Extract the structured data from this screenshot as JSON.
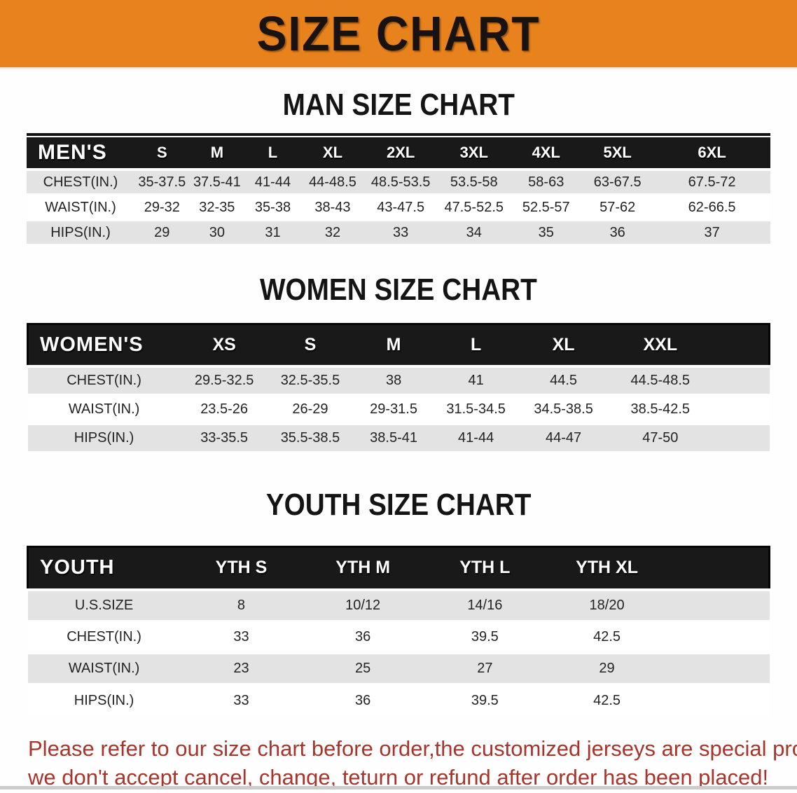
{
  "banner": {
    "title": "SIZE CHART"
  },
  "colors": {
    "banner_bg": "#E8821C",
    "table_header_bg": "#191919",
    "row_stripe_gray": "#E3E3E3",
    "note_red": "#A8352C"
  },
  "tables": [
    {
      "id": "men",
      "heading": "MAN SIZE CHART",
      "label": "MEN'S",
      "sizes": [
        "S",
        "M",
        "L",
        "XL",
        "2XL",
        "3XL",
        "4XL",
        "5XL",
        "6XL"
      ],
      "rows": [
        {
          "label": "CHEST(IN.)",
          "values": [
            "35-37.5",
            "37.5-41",
            "41-44",
            "44-48.5",
            "48.5-53.5",
            "53.5-58",
            "58-63",
            "63-67.5",
            "67.5-72"
          ]
        },
        {
          "label": "WAIST(IN.)",
          "values": [
            "29-32",
            "32-35",
            "35-38",
            "38-43",
            "43-47.5",
            "47.5-52.5",
            "52.5-57",
            "57-62",
            "62-66.5"
          ]
        },
        {
          "label": "HIPS(IN.)",
          "values": [
            "29",
            "30",
            "31",
            "32",
            "33",
            "34",
            "35",
            "36",
            "37"
          ]
        }
      ]
    },
    {
      "id": "women",
      "heading": "WOMEN SIZE CHART",
      "label": "WOMEN'S",
      "sizes": [
        "XS",
        "S",
        "M",
        "L",
        "XL",
        "XXL"
      ],
      "rows": [
        {
          "label": "CHEST(IN.)",
          "values": [
            "29.5-32.5",
            "32.5-35.5",
            "38",
            "41",
            "44.5",
            "44.5-48.5"
          ]
        },
        {
          "label": "WAIST(IN.)",
          "values": [
            "23.5-26",
            "26-29",
            "29-31.5",
            "31.5-34.5",
            "34.5-38.5",
            "38.5-42.5"
          ]
        },
        {
          "label": "HIPS(IN.)",
          "values": [
            "33-35.5",
            "35.5-38.5",
            "38.5-41",
            "41-44",
            "44-47",
            "47-50"
          ]
        }
      ]
    },
    {
      "id": "youth",
      "heading": "YOUTH SIZE CHART",
      "label": "YOUTH",
      "sizes": [
        "YTH S",
        "YTH M",
        "YTH L",
        "YTH XL"
      ],
      "rows": [
        {
          "label": "U.S.SIZE",
          "values": [
            "8",
            "10/12",
            "14/16",
            "18/20"
          ]
        },
        {
          "label": "CHEST(IN.)",
          "values": [
            "33",
            "36",
            "39.5",
            "42.5"
          ]
        },
        {
          "label": "WAIST(IN.)",
          "values": [
            "23",
            "25",
            "27",
            "29"
          ]
        },
        {
          "label": "HIPS(IN.)",
          "values": [
            "33",
            "36",
            "39.5",
            "42.5"
          ]
        }
      ]
    }
  ],
  "note": {
    "line1": "Please refer to our size chart before order,the customized jerseys are special products,",
    "line2": "we don't accept cancel, change, teturn or refund after order has been placed!"
  }
}
